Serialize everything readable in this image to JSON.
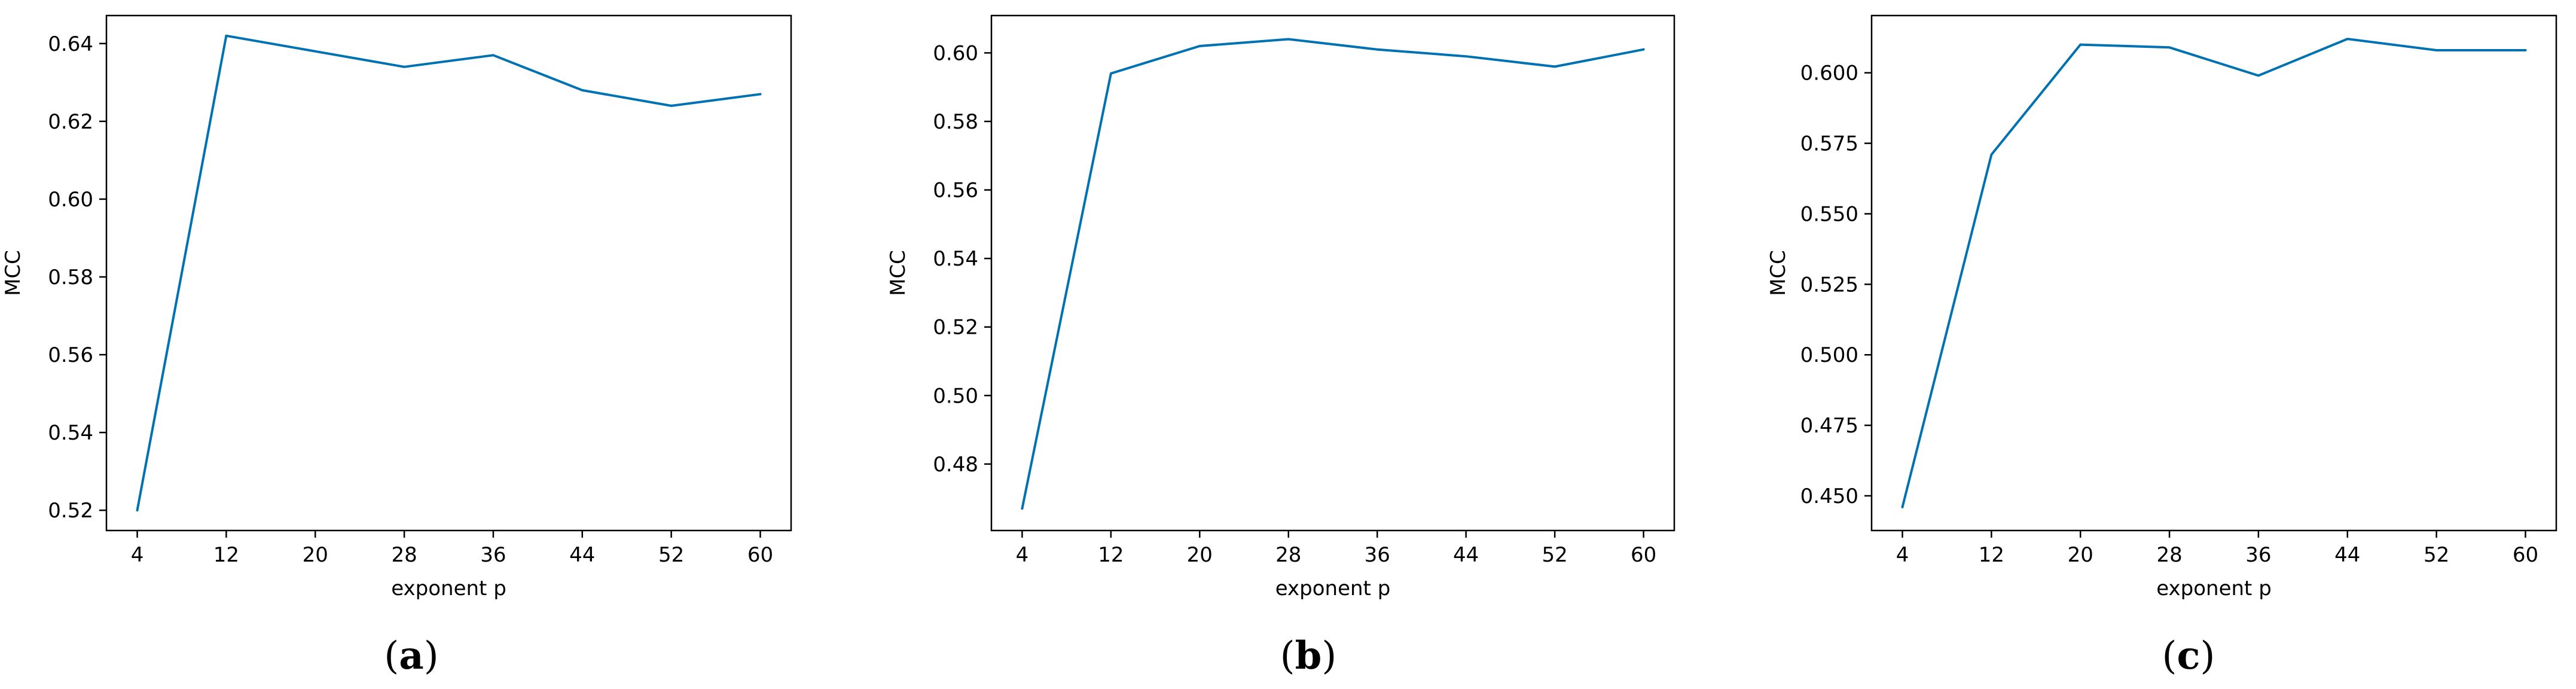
{
  "figures": [
    {
      "caption_letter": "a",
      "chart_data": {
        "type": "line",
        "xlabel": "exponent p",
        "ylabel": "MCC",
        "x": [
          4,
          12,
          20,
          28,
          36,
          44,
          52,
          60
        ],
        "xticks": [
          "4",
          "12",
          "20",
          "28",
          "36",
          "44",
          "52",
          "60"
        ],
        "yticks": [
          0.52,
          0.54,
          0.56,
          0.58,
          0.6,
          0.62,
          0.64
        ],
        "ytick_labels": [
          "0.52",
          "0.54",
          "0.56",
          "0.58",
          "0.60",
          "0.62",
          "0.64"
        ],
        "ylim": [
          0.5148,
          0.6472
        ],
        "series": [
          {
            "values": [
              0.52,
              0.642,
              0.638,
              0.634,
              0.637,
              0.628,
              0.624,
              0.627
            ]
          }
        ],
        "grid": false
      }
    },
    {
      "caption_letter": "b",
      "chart_data": {
        "type": "line",
        "xlabel": "exponent p",
        "ylabel": "MCC",
        "x": [
          4,
          12,
          20,
          28,
          36,
          44,
          52,
          60
        ],
        "xticks": [
          "4",
          "12",
          "20",
          "28",
          "36",
          "44",
          "52",
          "60"
        ],
        "yticks": [
          0.48,
          0.5,
          0.52,
          0.54,
          0.56,
          0.58,
          0.6
        ],
        "ytick_labels": [
          "0.48",
          "0.50",
          "0.52",
          "0.54",
          "0.56",
          "0.58",
          "0.60"
        ],
        "ylim": [
          0.4606,
          0.6109
        ],
        "series": [
          {
            "values": [
              0.467,
              0.594,
              0.602,
              0.604,
              0.601,
              0.599,
              0.596,
              0.601
            ]
          }
        ],
        "grid": false
      }
    },
    {
      "caption_letter": "c",
      "chart_data": {
        "type": "line",
        "xlabel": "exponent p",
        "ylabel": "MCC",
        "x": [
          4,
          12,
          20,
          28,
          36,
          44,
          52,
          60
        ],
        "xticks": [
          "4",
          "12",
          "20",
          "28",
          "36",
          "44",
          "52",
          "60"
        ],
        "yticks": [
          0.45,
          0.475,
          0.5,
          0.525,
          0.55,
          0.575,
          0.6
        ],
        "ytick_labels": [
          "0.450",
          "0.475",
          "0.500",
          "0.525",
          "0.550",
          "0.575",
          "0.600"
        ],
        "ylim": [
          0.4377,
          0.6203
        ],
        "series": [
          {
            "values": [
              0.446,
              0.571,
              0.61,
              0.609,
              0.599,
              0.612,
              0.608,
              0.608
            ]
          }
        ],
        "grid": false
      }
    }
  ],
  "colors": {
    "line": "#0072b2",
    "axes": "#000000",
    "text": "#000000"
  }
}
